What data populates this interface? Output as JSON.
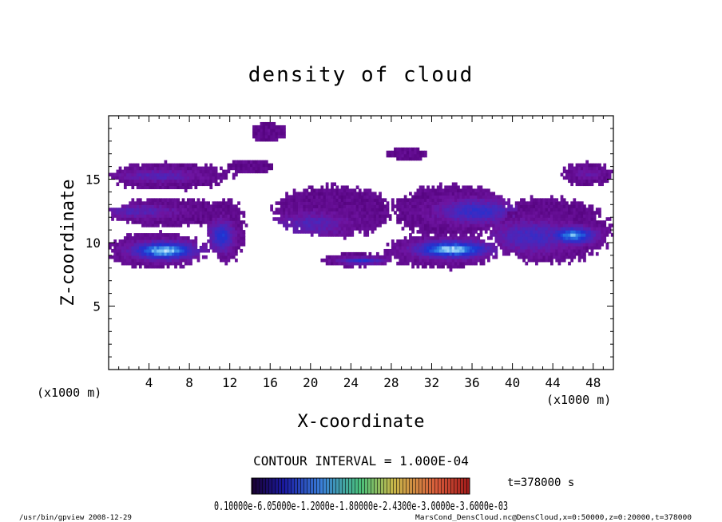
{
  "chart_data": {
    "type": "heatmap",
    "title": "density of cloud",
    "xlabel": "X-coordinate",
    "ylabel": "Z-coordinate",
    "x_unit_left": "(x1000 m)",
    "x_unit_right": "(x1000 m)",
    "xlim": [
      0,
      50
    ],
    "ylim": [
      0,
      20
    ],
    "xticks": [
      "4",
      "8",
      "12",
      "16",
      "20",
      "24",
      "28",
      "32",
      "36",
      "40",
      "44",
      "48"
    ],
    "yticks": [
      "5",
      "10",
      "15"
    ],
    "contour_interval": "CONTOUR INTERVAL = 1.000E-04",
    "time_label": "t=378000 s",
    "colorbar_labels_text": "0.10000e-6.05000e-1.2000e-1.80000e-2.4300e-3.0000e-3.6000e-03",
    "colorbar_range": [
      0.0001,
      0.00036
    ],
    "footer_left": "/usr/bin/gpview   2008-12-29",
    "footer_right": "MarsCond_DensCloud.nc@DensCloud,x=0:50000,z=0:20000,t=378000",
    "colors": {
      "background": "#ffffff",
      "low": "#5a0a7a",
      "mid": "#1a2fb0",
      "high": "#dff0ff"
    },
    "cloud_regions": [
      {
        "x": [
          0,
          9.5
        ],
        "z": [
          8,
          10.8
        ],
        "peak": 0.95,
        "core_x": 5.5,
        "core_z": 9.4
      },
      {
        "x": [
          0,
          12
        ],
        "z": [
          14.2,
          16.3
        ],
        "peak": 0.35,
        "core_x": 5,
        "core_z": 15.3
      },
      {
        "x": [
          0,
          12
        ],
        "z": [
          11.3,
          13.5
        ],
        "peak": 0.35,
        "core_x": 3,
        "core_z": 12.5
      },
      {
        "x": [
          9.8,
          13.5
        ],
        "z": [
          8.5,
          13.5
        ],
        "peak": 0.6,
        "core_x": 11.2,
        "core_z": 10.5
      },
      {
        "x": [
          14,
          17.5
        ],
        "z": [
          18,
          19.5
        ],
        "peak": 0.1,
        "core_x": 15.5,
        "core_z": 18.7
      },
      {
        "x": [
          11.5,
          16.5
        ],
        "z": [
          15.5,
          16.5
        ],
        "peak": 0.1,
        "core_x": 14,
        "core_z": 16
      },
      {
        "x": [
          16.5,
          28
        ],
        "z": [
          10.5,
          14.5
        ],
        "peak": 0.35,
        "core_x": 20,
        "core_z": 11.5
      },
      {
        "x": [
          21,
          28
        ],
        "z": [
          8.1,
          9.2
        ],
        "peak": 0.55,
        "core_x": 25,
        "core_z": 8.6
      },
      {
        "x": [
          27.5,
          31.5
        ],
        "z": [
          16.5,
          17.5
        ],
        "peak": 0.1,
        "core_x": 29.5,
        "core_z": 17
      },
      {
        "x": [
          27.5,
          38.5
        ],
        "z": [
          8,
          10.7
        ],
        "peak": 0.95,
        "core_x": 34,
        "core_z": 9.5
      },
      {
        "x": [
          28,
          40
        ],
        "z": [
          10.5,
          14.5
        ],
        "peak": 0.5,
        "core_x": 36.5,
        "core_z": 12.5
      },
      {
        "x": [
          37.5,
          49.5
        ],
        "z": [
          8.4,
          13.5
        ],
        "peak": 0.45,
        "core_x": 42,
        "core_z": 10.5
      },
      {
        "x": [
          43,
          49.8
        ],
        "z": [
          9.5,
          12.2
        ],
        "peak": 0.85,
        "core_x": 46,
        "core_z": 10.6
      },
      {
        "x": [
          45,
          49.8
        ],
        "z": [
          14.5,
          16.3
        ],
        "peak": 0.25,
        "core_x": 47.5,
        "core_z": 15.5
      }
    ]
  }
}
